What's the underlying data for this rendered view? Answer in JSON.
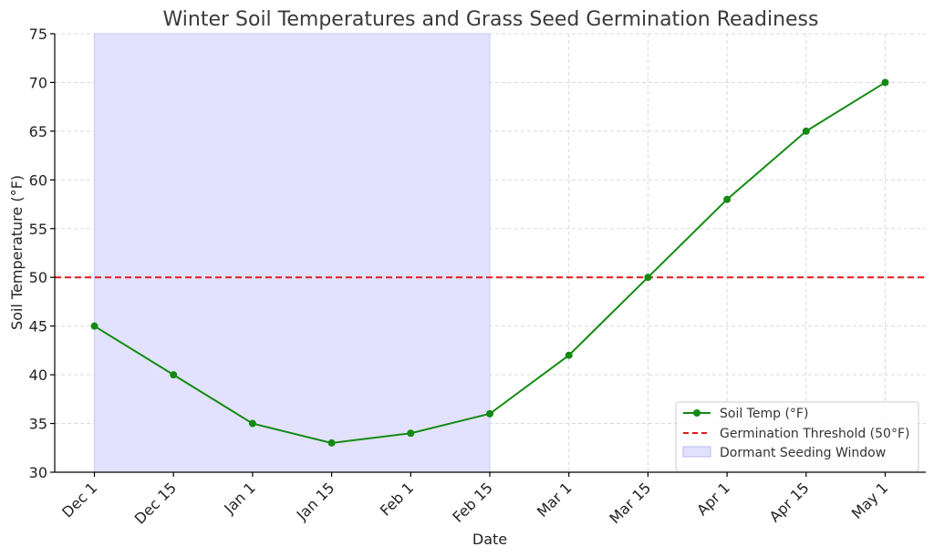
{
  "chart_data": {
    "type": "line",
    "title": "Winter Soil Temperatures and Grass Seed Germination Readiness",
    "xlabel": "Date",
    "ylabel": "Soil Temperature (°F)",
    "categories": [
      "Dec 1",
      "Dec 15",
      "Jan 1",
      "Jan 15",
      "Feb 1",
      "Feb 15",
      "Mar 1",
      "Mar 15",
      "Apr 1",
      "Apr 15",
      "May 1"
    ],
    "series": [
      {
        "name": "Soil Temp (°F)",
        "color": "#138a13",
        "values": [
          45,
          40,
          35,
          33,
          34,
          36,
          42,
          50,
          58,
          65,
          70
        ]
      }
    ],
    "threshold": {
      "name": "Germination Threshold (50°F)",
      "value": 50,
      "color": "#e31a1a"
    },
    "shaded_region": {
      "name": "Dormant Seeding Window",
      "start": "Dec 1",
      "end": "Feb 15",
      "color": "#e2e2fe"
    },
    "ylim": [
      30,
      75
    ],
    "yticks": [
      30,
      35,
      40,
      45,
      50,
      55,
      60,
      65,
      70,
      75
    ],
    "grid": true,
    "legend_position": "bottom-right"
  }
}
